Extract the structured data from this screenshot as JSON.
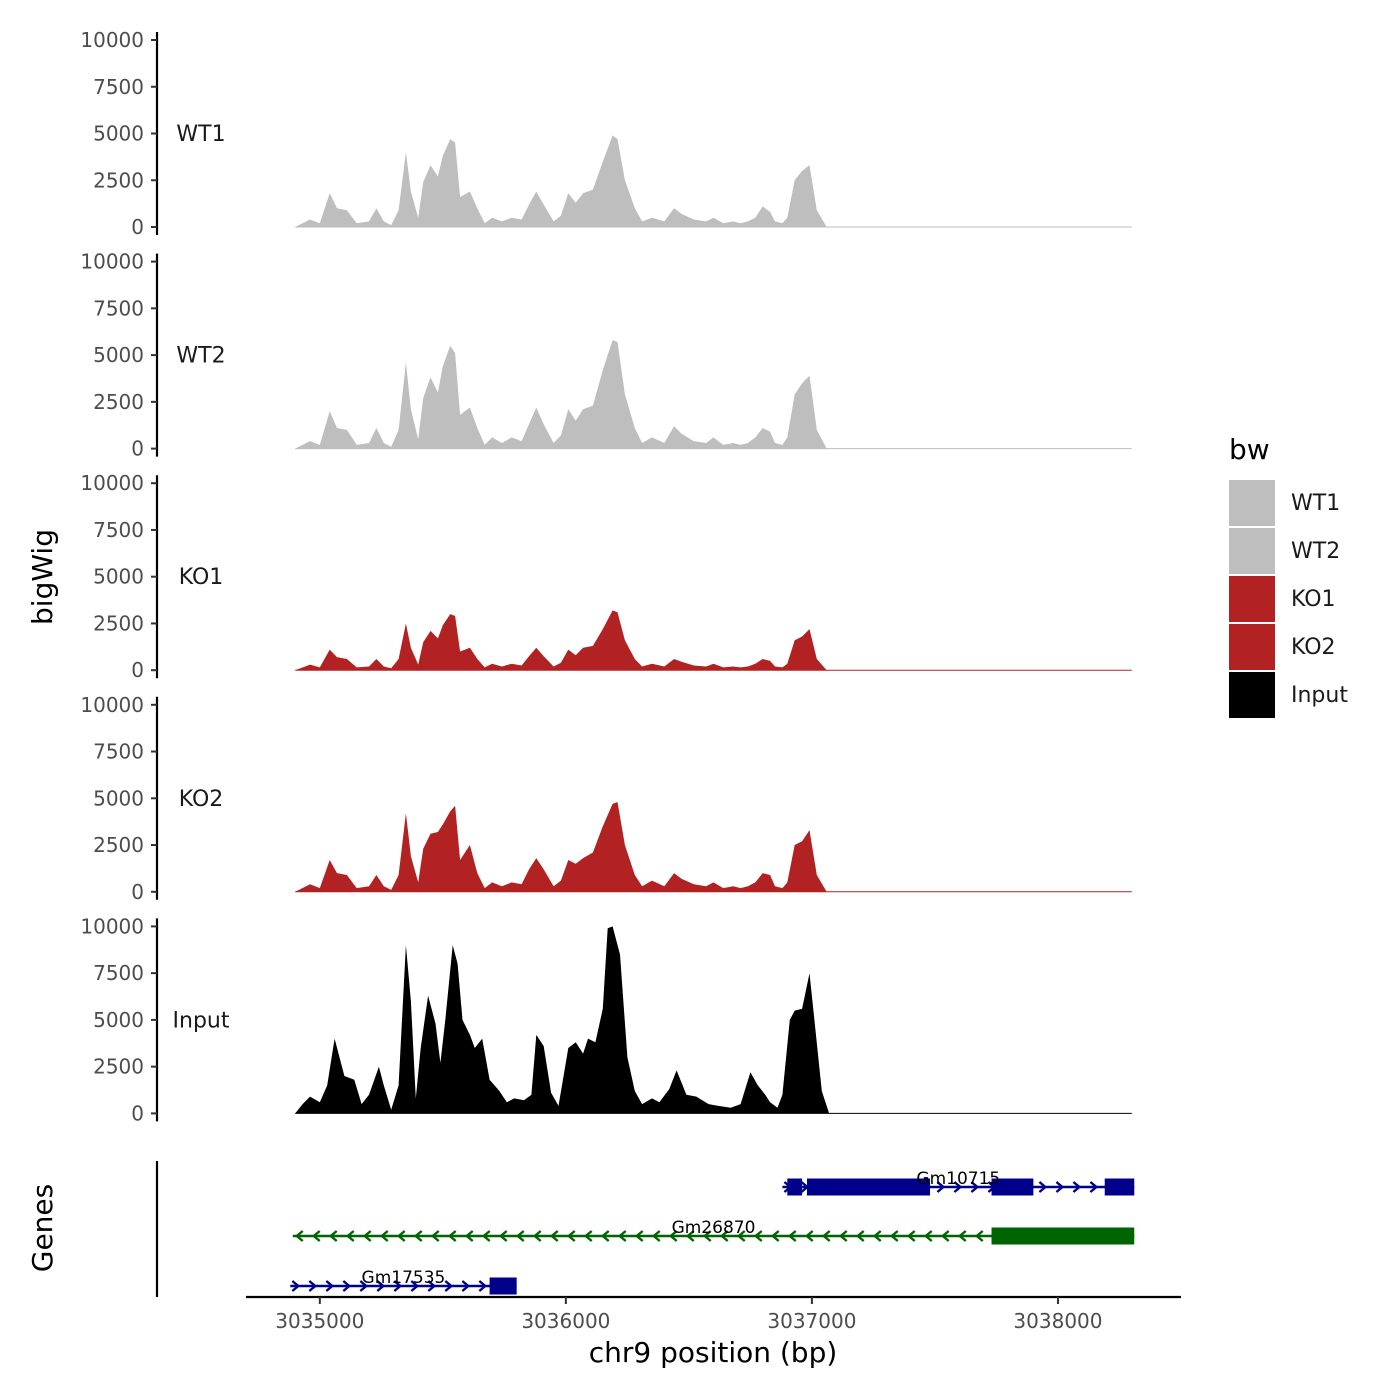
{
  "chart_data": {
    "type": "area",
    "xlabel": "chr9 position (bp)",
    "y_panel_label": "bigWig",
    "gene_panel_label": "Genes",
    "xlim": [
      3034700,
      3038500
    ],
    "x_ticks": [
      3035000,
      3036000,
      3037000,
      3038000
    ],
    "x_tick_labels": [
      "3035000",
      "3036000",
      "3037000",
      "3038000"
    ],
    "ylim": [
      0,
      10000
    ],
    "y_ticks": [
      0,
      2500,
      5000,
      7500,
      10000
    ],
    "y_tick_labels": [
      "0",
      "2500",
      "5000",
      "7500",
      "10000"
    ],
    "legend": {
      "title": "bw",
      "items": [
        {
          "label": "WT1",
          "color": "#bebebe"
        },
        {
          "label": "WT2",
          "color": "#bebebe"
        },
        {
          "label": "KO1",
          "color": "#b22222"
        },
        {
          "label": "KO2",
          "color": "#b22222"
        },
        {
          "label": "Input",
          "color": "#000000"
        }
      ]
    },
    "series": [
      {
        "name": "WT1",
        "color": "#bebebe",
        "x": [
          3034900,
          3034960,
          3035000,
          3035040,
          3035070,
          3035110,
          3035150,
          3035200,
          3035230,
          3035260,
          3035290,
          3035320,
          3035350,
          3035370,
          3035400,
          3035420,
          3035450,
          3035480,
          3035500,
          3035530,
          3035550,
          3035570,
          3035610,
          3035640,
          3035670,
          3035700,
          3035740,
          3035780,
          3035820,
          3035850,
          3035880,
          3035910,
          3035950,
          3035980,
          3036010,
          3036040,
          3036070,
          3036110,
          3036150,
          3036190,
          3036210,
          3036240,
          3036280,
          3036310,
          3036350,
          3036400,
          3036440,
          3036470,
          3036520,
          3036570,
          3036600,
          3036640,
          3036680,
          3036710,
          3036740,
          3036770,
          3036800,
          3036830,
          3036850,
          3036880,
          3036900,
          3036930,
          3036960,
          3036990,
          3037020,
          3037060,
          3038300
        ],
        "y": [
          0,
          400,
          200,
          1800,
          1000,
          900,
          200,
          300,
          1000,
          300,
          100,
          900,
          4000,
          1900,
          500,
          2400,
          3300,
          2700,
          3800,
          4700,
          4500,
          1600,
          1900,
          1000,
          200,
          500,
          300,
          500,
          400,
          1200,
          1900,
          1200,
          300,
          600,
          1800,
          1300,
          1800,
          2000,
          3500,
          4900,
          4700,
          2500,
          1000,
          300,
          500,
          300,
          1000,
          700,
          400,
          300,
          500,
          200,
          300,
          200,
          300,
          500,
          1100,
          800,
          300,
          200,
          500,
          2500,
          3000,
          3300,
          900,
          0,
          0
        ]
      },
      {
        "name": "WT2",
        "color": "#bebebe",
        "x": [
          3034900,
          3034960,
          3035000,
          3035040,
          3035070,
          3035110,
          3035150,
          3035200,
          3035230,
          3035260,
          3035290,
          3035320,
          3035350,
          3035370,
          3035400,
          3035420,
          3035450,
          3035480,
          3035500,
          3035530,
          3035550,
          3035570,
          3035610,
          3035640,
          3035670,
          3035700,
          3035740,
          3035780,
          3035820,
          3035850,
          3035880,
          3035910,
          3035950,
          3035980,
          3036010,
          3036040,
          3036070,
          3036110,
          3036150,
          3036190,
          3036210,
          3036240,
          3036280,
          3036310,
          3036350,
          3036400,
          3036440,
          3036470,
          3036520,
          3036570,
          3036600,
          3036640,
          3036680,
          3036710,
          3036740,
          3036770,
          3036800,
          3036830,
          3036850,
          3036880,
          3036900,
          3036930,
          3036960,
          3036990,
          3037020,
          3037060,
          3038300
        ],
        "y": [
          0,
          400,
          200,
          2000,
          1100,
          1000,
          200,
          300,
          1100,
          300,
          100,
          1000,
          4600,
          2100,
          500,
          2700,
          3800,
          3000,
          4400,
          5500,
          5100,
          1800,
          2200,
          1100,
          200,
          600,
          300,
          600,
          400,
          1300,
          2200,
          1300,
          300,
          700,
          2100,
          1500,
          2100,
          2300,
          4200,
          5800,
          5700,
          2900,
          1100,
          300,
          600,
          300,
          1200,
          800,
          400,
          300,
          600,
          200,
          300,
          200,
          300,
          600,
          1100,
          900,
          300,
          200,
          600,
          2900,
          3500,
          3900,
          1000,
          0,
          0
        ]
      },
      {
        "name": "KO1",
        "color": "#b22222",
        "x": [
          3034900,
          3034960,
          3035000,
          3035040,
          3035070,
          3035110,
          3035150,
          3035200,
          3035230,
          3035260,
          3035290,
          3035320,
          3035350,
          3035370,
          3035400,
          3035420,
          3035450,
          3035480,
          3035500,
          3035530,
          3035550,
          3035570,
          3035610,
          3035640,
          3035670,
          3035700,
          3035740,
          3035780,
          3035820,
          3035850,
          3035880,
          3035910,
          3035950,
          3035980,
          3036010,
          3036040,
          3036070,
          3036110,
          3036150,
          3036190,
          3036210,
          3036240,
          3036280,
          3036310,
          3036350,
          3036400,
          3036440,
          3036470,
          3036520,
          3036570,
          3036600,
          3036640,
          3036680,
          3036710,
          3036740,
          3036770,
          3036800,
          3036830,
          3036850,
          3036880,
          3036900,
          3036930,
          3036960,
          3036990,
          3037020,
          3037060,
          3038300
        ],
        "y": [
          0,
          300,
          150,
          1100,
          700,
          600,
          150,
          200,
          600,
          200,
          100,
          600,
          2500,
          1200,
          300,
          1500,
          2100,
          1700,
          2400,
          3000,
          2900,
          1000,
          1200,
          600,
          150,
          350,
          200,
          350,
          250,
          750,
          1200,
          750,
          200,
          400,
          1100,
          800,
          1200,
          1300,
          2200,
          3200,
          3100,
          1600,
          600,
          200,
          350,
          200,
          600,
          450,
          250,
          200,
          350,
          150,
          200,
          150,
          200,
          350,
          600,
          500,
          200,
          150,
          350,
          1600,
          1800,
          2200,
          600,
          0,
          0
        ]
      },
      {
        "name": "KO2",
        "color": "#b22222",
        "x": [
          3034900,
          3034960,
          3035000,
          3035040,
          3035070,
          3035110,
          3035150,
          3035200,
          3035230,
          3035260,
          3035290,
          3035320,
          3035350,
          3035370,
          3035400,
          3035420,
          3035450,
          3035480,
          3035500,
          3035530,
          3035550,
          3035570,
          3035610,
          3035640,
          3035670,
          3035700,
          3035740,
          3035780,
          3035820,
          3035850,
          3035880,
          3035910,
          3035950,
          3035980,
          3036010,
          3036040,
          3036070,
          3036110,
          3036150,
          3036190,
          3036210,
          3036240,
          3036280,
          3036310,
          3036350,
          3036400,
          3036440,
          3036470,
          3036520,
          3036570,
          3036600,
          3036640,
          3036680,
          3036710,
          3036740,
          3036770,
          3036800,
          3036830,
          3036850,
          3036880,
          3036900,
          3036930,
          3036960,
          3036990,
          3037020,
          3037060,
          3038300
        ],
        "y": [
          0,
          400,
          200,
          1700,
          1000,
          900,
          200,
          300,
          900,
          300,
          100,
          900,
          4200,
          1900,
          500,
          2300,
          3100,
          3200,
          3600,
          4300,
          4600,
          1700,
          2500,
          1000,
          200,
          500,
          300,
          500,
          400,
          1200,
          1800,
          1200,
          300,
          600,
          1700,
          1500,
          1800,
          2100,
          3500,
          4700,
          4800,
          2500,
          900,
          300,
          600,
          300,
          1000,
          700,
          400,
          300,
          500,
          200,
          300,
          200,
          300,
          500,
          1000,
          900,
          300,
          200,
          500,
          2500,
          2700,
          3300,
          900,
          0,
          0
        ]
      },
      {
        "name": "Input",
        "color": "#000000",
        "x": [
          3034900,
          3034930,
          3034960,
          3035000,
          3035030,
          3035060,
          3035100,
          3035140,
          3035170,
          3035200,
          3035240,
          3035260,
          3035290,
          3035320,
          3035350,
          3035370,
          3035390,
          3035410,
          3035440,
          3035470,
          3035490,
          3035510,
          3035540,
          3035560,
          3035580,
          3035610,
          3035630,
          3035660,
          3035690,
          3035730,
          3035760,
          3035790,
          3035830,
          3035860,
          3035880,
          3035910,
          3035940,
          3035970,
          3036010,
          3036040,
          3036070,
          3036090,
          3036120,
          3036150,
          3036170,
          3036190,
          3036220,
          3036250,
          3036280,
          3036310,
          3036350,
          3036380,
          3036420,
          3036450,
          3036490,
          3036530,
          3036580,
          3036620,
          3036670,
          3036710,
          3036750,
          3036780,
          3036810,
          3036830,
          3036860,
          3036880,
          3036910,
          3036930,
          3036960,
          3036990,
          3037010,
          3037040,
          3037070,
          3038300
        ],
        "y": [
          0,
          500,
          900,
          600,
          1500,
          4000,
          2000,
          1800,
          500,
          1000,
          2500,
          1500,
          200,
          1500,
          9000,
          6000,
          800,
          3500,
          6300,
          4800,
          2700,
          5000,
          9000,
          8000,
          5000,
          4200,
          3500,
          4000,
          1800,
          1200,
          600,
          800,
          700,
          1000,
          4200,
          3600,
          1100,
          400,
          3500,
          3800,
          3200,
          4000,
          3800,
          5600,
          9900,
          10000,
          8500,
          3000,
          1200,
          500,
          800,
          600,
          1300,
          2300,
          1000,
          900,
          500,
          400,
          300,
          500,
          2200,
          1500,
          1000,
          600,
          300,
          1000,
          5000,
          5500,
          5600,
          7500,
          5000,
          1200,
          0,
          0
        ]
      }
    ],
    "genes": [
      {
        "name": "Gm10715",
        "strand": "+",
        "color": "#00008b",
        "start": 3036880,
        "end": 3038310,
        "exons": [
          [
            3036900,
            3036960
          ],
          [
            3036980,
            3037480
          ],
          [
            3037730,
            3037900
          ],
          [
            3038190,
            3038310
          ]
        ]
      },
      {
        "name": "Gm26870",
        "strand": "-",
        "color": "#006400",
        "start": 3034890,
        "end": 3038310,
        "exons": [
          [
            3037730,
            3038310
          ]
        ]
      },
      {
        "name": "Gm17535",
        "strand": "+",
        "color": "#00008b",
        "start": 3034880,
        "end": 3035800,
        "exons": [
          [
            3035690,
            3035800
          ]
        ]
      }
    ]
  }
}
